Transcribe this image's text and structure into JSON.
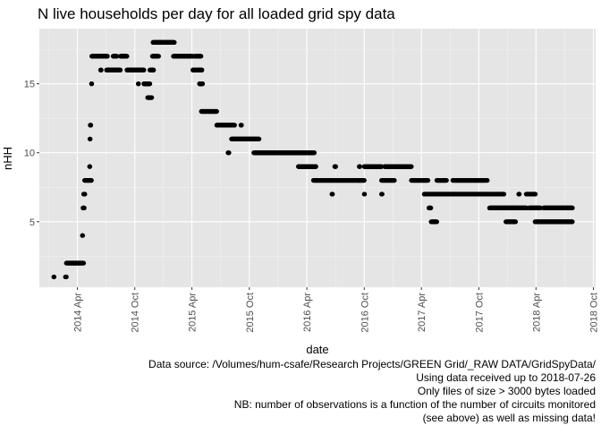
{
  "chart_data": {
    "type": "scatter",
    "title": "N live households per day for all loaded grid spy data",
    "xlabel": "date",
    "ylabel": "nHH",
    "xlim": [
      "2013-12-01",
      "2018-10-08"
    ],
    "ylim": [
      0.25,
      19
    ],
    "y_ticks": [
      5,
      10,
      15
    ],
    "x_ticks": [
      {
        "date": "2014-04-01",
        "label": "2014 Apr"
      },
      {
        "date": "2014-10-01",
        "label": "2014 Oct"
      },
      {
        "date": "2015-04-01",
        "label": "2015 Apr"
      },
      {
        "date": "2015-10-01",
        "label": "2015 Oct"
      },
      {
        "date": "2016-04-01",
        "label": "2016 Apr"
      },
      {
        "date": "2016-10-01",
        "label": "2016 Oct"
      },
      {
        "date": "2017-04-01",
        "label": "2017 Apr"
      },
      {
        "date": "2017-10-01",
        "label": "2017 Oct"
      },
      {
        "date": "2018-04-01",
        "label": "2018 Apr"
      },
      {
        "date": "2018-10-01",
        "label": "2018 Oct"
      }
    ],
    "grid": true,
    "point_color": "#000000",
    "panel_background": "#e5e5e5",
    "runs": [
      {
        "start": "2014-01-16",
        "end": "2014-01-17",
        "y": 1
      },
      {
        "start": "2014-02-22",
        "end": "2014-02-25",
        "y": 1
      },
      {
        "start": "2014-02-25",
        "end": "2014-03-22",
        "y": 2
      },
      {
        "start": "2014-03-22",
        "end": "2014-04-21",
        "y": 2
      },
      {
        "start": "2014-04-17",
        "end": "2014-04-18",
        "y": 4
      },
      {
        "start": "2014-04-19",
        "end": "2014-04-23",
        "y": 6
      },
      {
        "start": "2014-04-21",
        "end": "2014-04-25",
        "y": 7
      },
      {
        "start": "2014-04-24",
        "end": "2014-05-16",
        "y": 8
      },
      {
        "start": "2014-05-10",
        "end": "2014-05-11",
        "y": 9
      },
      {
        "start": "2014-05-11",
        "end": "2014-05-12",
        "y": 11
      },
      {
        "start": "2014-05-12",
        "end": "2014-05-14",
        "y": 12
      },
      {
        "start": "2014-05-16",
        "end": "2014-05-17",
        "y": 15
      },
      {
        "start": "2014-05-17",
        "end": "2014-06-20",
        "y": 17
      },
      {
        "start": "2014-06-14",
        "end": "2014-06-16",
        "y": 16
      },
      {
        "start": "2014-06-20",
        "end": "2014-07-06",
        "y": 17
      },
      {
        "start": "2014-07-03",
        "end": "2014-08-09",
        "y": 16
      },
      {
        "start": "2014-07-24",
        "end": "2014-08-05",
        "y": 17
      },
      {
        "start": "2014-08-09",
        "end": "2014-08-16",
        "y": 16
      },
      {
        "start": "2014-08-16",
        "end": "2014-09-06",
        "y": 17
      },
      {
        "start": "2014-09-06",
        "end": "2014-10-18",
        "y": 16
      },
      {
        "start": "2014-10-12",
        "end": "2014-10-13",
        "y": 15
      },
      {
        "start": "2014-10-18",
        "end": "2014-10-30",
        "y": 16
      },
      {
        "start": "2014-10-30",
        "end": "2014-11-18",
        "y": 15
      },
      {
        "start": "2014-11-11",
        "end": "2014-11-24",
        "y": 14
      },
      {
        "start": "2014-11-18",
        "end": "2014-11-30",
        "y": 16
      },
      {
        "start": "2014-11-26",
        "end": "2014-12-16",
        "y": 17
      },
      {
        "start": "2014-11-28",
        "end": "2015-02-04",
        "y": 18
      },
      {
        "start": "2015-02-01",
        "end": "2015-04-04",
        "y": 17
      },
      {
        "start": "2015-04-04",
        "end": "2015-04-12",
        "y": 16
      },
      {
        "start": "2015-04-10",
        "end": "2015-04-30",
        "y": 17
      },
      {
        "start": "2015-04-15",
        "end": "2015-05-03",
        "y": 16
      },
      {
        "start": "2015-04-25",
        "end": "2015-05-05",
        "y": 15
      },
      {
        "start": "2015-05-01",
        "end": "2015-06-19",
        "y": 13
      },
      {
        "start": "2015-06-19",
        "end": "2015-08-15",
        "y": 12
      },
      {
        "start": "2015-07-25",
        "end": "2015-07-28",
        "y": 10
      },
      {
        "start": "2015-08-05",
        "end": "2015-09-12",
        "y": 11
      },
      {
        "start": "2015-09-04",
        "end": "2015-09-06",
        "y": 12
      },
      {
        "start": "2015-09-12",
        "end": "2015-11-01",
        "y": 11
      },
      {
        "start": "2015-10-15",
        "end": "2016-03-01",
        "y": 10
      },
      {
        "start": "2016-01-22",
        "end": "2016-04-10",
        "y": 10
      },
      {
        "start": "2016-03-05",
        "end": "2016-04-30",
        "y": 9
      },
      {
        "start": "2016-04-08",
        "end": "2016-04-25",
        "y": 10
      },
      {
        "start": "2016-04-22",
        "end": "2016-09-18",
        "y": 8
      },
      {
        "start": "2016-06-20",
        "end": "2016-06-22",
        "y": 7
      },
      {
        "start": "2016-06-29",
        "end": "2016-07-02",
        "y": 9
      },
      {
        "start": "2016-09-15",
        "end": "2016-09-17",
        "y": 9
      },
      {
        "start": "2016-09-16",
        "end": "2016-10-01",
        "y": 8
      },
      {
        "start": "2016-10-01",
        "end": "2016-10-02",
        "y": 7
      },
      {
        "start": "2016-10-01",
        "end": "2016-11-25",
        "y": 9
      },
      {
        "start": "2016-11-25",
        "end": "2017-01-05",
        "y": 8
      },
      {
        "start": "2016-11-25",
        "end": "2016-11-27",
        "y": 7
      },
      {
        "start": "2016-12-05",
        "end": "2017-02-28",
        "y": 9
      },
      {
        "start": "2017-02-28",
        "end": "2017-04-22",
        "y": 8
      },
      {
        "start": "2017-04-10",
        "end": "2017-05-20",
        "y": 7
      },
      {
        "start": "2017-04-25",
        "end": "2017-05-01",
        "y": 6
      },
      {
        "start": "2017-05-02",
        "end": "2017-05-20",
        "y": 5
      },
      {
        "start": "2017-05-20",
        "end": "2017-06-20",
        "y": 8
      },
      {
        "start": "2017-05-20",
        "end": "2017-11-17",
        "y": 7
      },
      {
        "start": "2017-07-10",
        "end": "2017-10-22",
        "y": 8
      },
      {
        "start": "2017-10-25",
        "end": "2017-10-28",
        "y": 8
      },
      {
        "start": "2017-11-04",
        "end": "2018-01-20",
        "y": 6
      },
      {
        "start": "2017-11-20",
        "end": "2017-12-20",
        "y": 7
      },
      {
        "start": "2017-12-26",
        "end": "2018-01-26",
        "y": 5
      },
      {
        "start": "2018-01-18",
        "end": "2018-03-02",
        "y": 6
      },
      {
        "start": "2018-02-05",
        "end": "2018-02-07",
        "y": 7
      },
      {
        "start": "2018-03-01",
        "end": "2018-03-30",
        "y": 7
      },
      {
        "start": "2018-03-10",
        "end": "2018-04-15",
        "y": 6
      },
      {
        "start": "2018-03-29",
        "end": "2018-07-26",
        "y": 5
      },
      {
        "start": "2018-04-25",
        "end": "2018-07-26",
        "y": 6
      }
    ]
  },
  "caption": {
    "lines": [
      "Data source: /Volumes/hum-csafe/Research Projects/GREEN Grid/_RAW DATA/GridSpyData/",
      "Using data received up to 2018-07-26",
      "Only files of size > 3000 bytes loaded",
      "NB: number of observations is a function of the number of circuits monitored",
      "(see above) as well as missing data!"
    ]
  }
}
